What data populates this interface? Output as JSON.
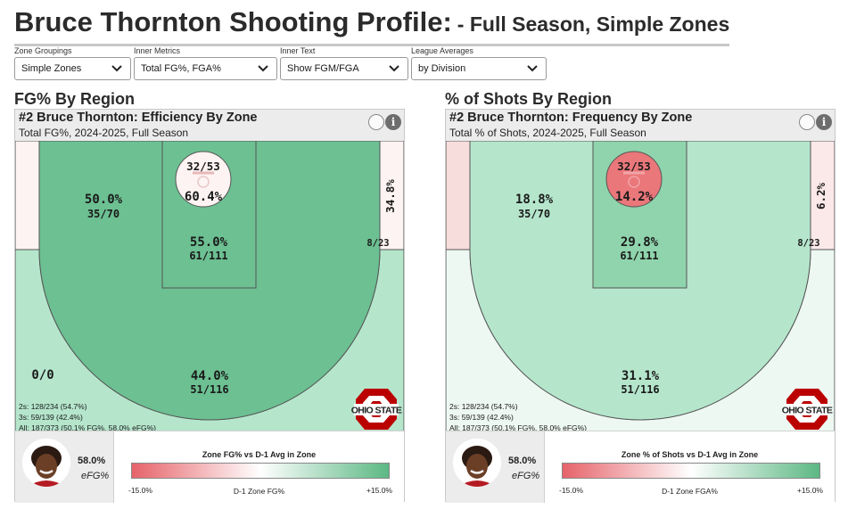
{
  "header": {
    "title": "Bruce Thornton Shooting Profile:",
    "subtitle": "- Full Season, Simple Zones"
  },
  "controls": [
    {
      "label": "Zone Groupings",
      "value": "Simple Zones"
    },
    {
      "label": "Inner Metrics",
      "value": "Total FG%, FGA%"
    },
    {
      "label": "Inner Text",
      "value": "Show FGM/FGA"
    },
    {
      "label": "League Averages",
      "value": "by Division"
    }
  ],
  "sections": {
    "left": "FG% By Region",
    "right": "% of Shots By Region"
  },
  "colors": {
    "green_dark": "#6cc092",
    "green_mid": "#8fd4ac",
    "green_light": "#b5e6cc",
    "green_pale": "#d3f0e0",
    "white_pink": "#fdf3f2",
    "pink_light": "#f8dddd",
    "red": "#ea777a",
    "court_line": "#555555",
    "osu_red": "#bb0000"
  },
  "icons": {
    "toggle": "circle-toggle-icon",
    "info": "info-icon",
    "dropdown": "chevron-down-icon",
    "logo": "ohio-state-logo"
  },
  "panels": [
    {
      "title": "#2 Bruce Thornton: Efficiency By Zone",
      "subtitle": "Total FG%, 2024-2025, Full Season",
      "zones": {
        "rim": {
          "metric": "60.4%",
          "frac": "32/53"
        },
        "paint": {
          "metric": "55.0%",
          "frac": "61/111"
        },
        "midrange": {
          "metric": "50.0%",
          "frac": "35/70"
        },
        "corner_right": {
          "metric": "34.8%",
          "frac": "8/23"
        },
        "corner_left": {
          "metric": "0/0"
        },
        "three": {
          "metric": "44.0%",
          "frac": "51/116"
        }
      },
      "stats": [
        "2s: 128/234 (54.7%)",
        "3s: 59/139 (42.4%)",
        "All: 187/373 (50.1% FG%, 58.0% eFG%)"
      ],
      "efg_value": "58.0%",
      "efg_label": "eFG%",
      "legend_title": "Zone FG% vs D-1 Avg in Zone",
      "legend_min": "-15.0%",
      "legend_axis": "D-1 Zone FG%",
      "legend_max": "+15.0%"
    },
    {
      "title": "#2 Bruce Thornton: Frequency By Zone",
      "subtitle": "Total % of Shots, 2024-2025, Full Season",
      "zones": {
        "rim": {
          "metric": "14.2%",
          "frac": "32/53"
        },
        "paint": {
          "metric": "29.8%",
          "frac": "61/111"
        },
        "midrange": {
          "metric": "18.8%",
          "frac": "35/70"
        },
        "corner_right": {
          "metric": "6.2%",
          "frac": "8/23"
        },
        "corner_left": {
          "metric": ""
        },
        "three": {
          "metric": "31.1%",
          "frac": "51/116"
        }
      },
      "stats": [
        "2s: 128/234 (54.7%)",
        "3s: 59/139 (42.4%)",
        "All: 187/373 (50.1% FG%, 58.0% eFG%)"
      ],
      "efg_value": "58.0%",
      "efg_label": "eFG%",
      "legend_title": "Zone % of Shots vs D-1 Avg in Zone",
      "legend_min": "-15.0%",
      "legend_axis": "D-1 Zone FGA%",
      "legend_max": "+15.0%"
    }
  ]
}
